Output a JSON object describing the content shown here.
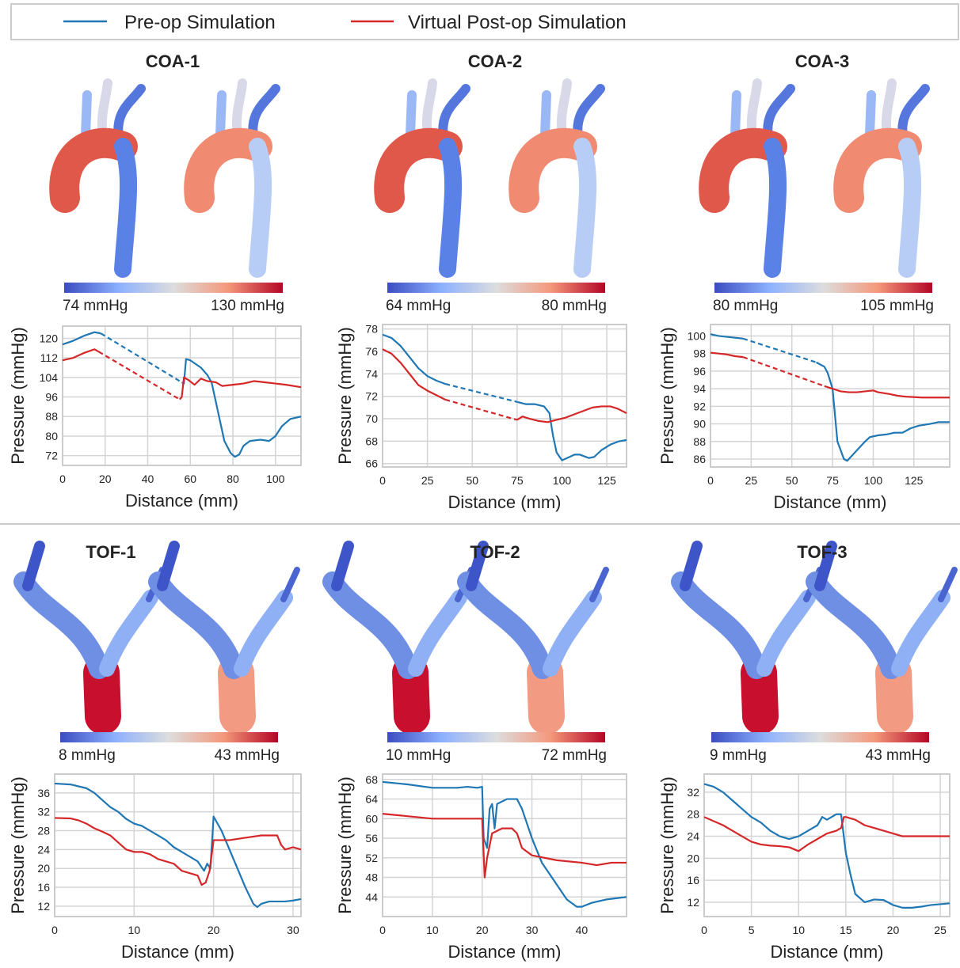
{
  "chart_data": [
    {
      "type": "line",
      "title": "COA-1",
      "colorbar_labels": [
        "74 mmHg",
        "130 mmHg"
      ],
      "xlabel": "Distance (mm)",
      "ylabel": "Pressure (mmHg)",
      "xlim": [
        0,
        112
      ],
      "ylim": [
        68,
        125
      ],
      "xticks": [
        0,
        20,
        40,
        60,
        80,
        100
      ],
      "yticks": [
        72,
        80,
        88,
        96,
        104,
        112,
        120
      ],
      "grid": true,
      "series": [
        {
          "name": "Pre-op Simulation",
          "color": "#1f77b4",
          "x": [
            0,
            5,
            10,
            15,
            18,
            null,
            56,
            57,
            58,
            60,
            65,
            68,
            70,
            73,
            76,
            79,
            81,
            83,
            85,
            88,
            93,
            97,
            100,
            103,
            107,
            112
          ],
          "values": [
            117.5,
            119,
            121,
            122.5,
            122,
            null,
            102,
            101.5,
            111.5,
            111,
            108,
            105,
            102,
            90,
            78,
            73,
            71.5,
            72.5,
            76,
            78,
            78.5,
            78,
            80,
            84,
            87,
            88
          ]
        },
        {
          "name": "Virtual Post-op Simulation",
          "color": "#d62728",
          "x": [
            0,
            5,
            10,
            15,
            17,
            null,
            55,
            56,
            57,
            59,
            62,
            65,
            68,
            72,
            75,
            80,
            85,
            90,
            95,
            100,
            105,
            112
          ],
          "values": [
            111,
            112,
            114,
            115.5,
            114.5,
            null,
            95,
            96,
            104,
            103,
            101,
            103.5,
            102.5,
            102,
            100.5,
            101,
            101.5,
            102.5,
            102,
            101.5,
            101,
            100
          ]
        }
      ]
    },
    {
      "type": "line",
      "title": "COA-2",
      "colorbar_labels": [
        "64 mmHg",
        "80 mmHg"
      ],
      "xlabel": "Distance (mm)",
      "ylabel": "Pressure (mmHg)",
      "xlim": [
        0,
        136
      ],
      "ylim": [
        65.7,
        78.4
      ],
      "xticks": [
        0,
        25,
        50,
        75,
        100,
        125
      ],
      "yticks": [
        66,
        68,
        70,
        72,
        74,
        76,
        78
      ],
      "grid": true,
      "series": [
        {
          "color": "#1f77b4",
          "x": [
            0,
            5,
            10,
            15,
            20,
            25,
            30,
            35,
            null,
            75,
            80,
            85,
            90,
            93,
            95,
            97,
            100,
            103,
            107,
            110,
            115,
            118,
            122,
            127,
            132,
            136
          ],
          "values": [
            77.5,
            77.2,
            76.5,
            75.5,
            74.5,
            73.8,
            73.4,
            73.1,
            null,
            71.5,
            71.3,
            71.3,
            71.1,
            70.5,
            68.5,
            67,
            66.3,
            66.5,
            66.8,
            66.8,
            66.5,
            66.6,
            67.2,
            67.7,
            68,
            68.1
          ]
        },
        {
          "color": "#d62728",
          "x": [
            0,
            5,
            10,
            15,
            20,
            25,
            30,
            35,
            null,
            75,
            78,
            82,
            87,
            92,
            97,
            102,
            107,
            112,
            117,
            122,
            127,
            131,
            136
          ],
          "values": [
            76.2,
            75.8,
            75,
            74,
            73,
            72.5,
            72.1,
            71.7,
            null,
            69.9,
            70.2,
            70,
            69.8,
            69.7,
            69.9,
            70.1,
            70.4,
            70.7,
            71,
            71.1,
            71.1,
            70.9,
            70.5
          ]
        }
      ]
    },
    {
      "type": "line",
      "title": "COA-3",
      "colorbar_labels": [
        "80 mmHg",
        "105 mmHg"
      ],
      "xlabel": "Distance (mm)",
      "ylabel": "Pressure (mmHg)",
      "xlim": [
        0,
        147
      ],
      "ylim": [
        85.1,
        101.3
      ],
      "xticks": [
        0,
        25,
        50,
        75,
        100,
        125
      ],
      "yticks": [
        86,
        88,
        90,
        92,
        94,
        96,
        98,
        100
      ],
      "grid": true,
      "series": [
        {
          "color": "#1f77b4",
          "x": [
            0,
            5,
            10,
            15,
            20,
            null,
            65,
            70,
            72,
            75,
            77,
            78,
            80,
            82,
            84,
            86,
            90,
            95,
            98,
            103,
            108,
            113,
            118,
            123,
            128,
            135,
            140,
            147
          ],
          "values": [
            100.2,
            100,
            99.9,
            99.8,
            99.7,
            null,
            97,
            96.5,
            95.8,
            94,
            90,
            88,
            87,
            86,
            85.8,
            86.2,
            87,
            88,
            88.5,
            88.7,
            88.8,
            89,
            89,
            89.5,
            89.8,
            90,
            90.2,
            90.2
          ]
        },
        {
          "color": "#d62728",
          "x": [
            0,
            5,
            10,
            15,
            20,
            null,
            70,
            75,
            80,
            85,
            90,
            95,
            100,
            103,
            110,
            115,
            120,
            130,
            140,
            147
          ],
          "values": [
            98.1,
            98,
            97.9,
            97.7,
            97.6,
            null,
            94.3,
            94,
            93.7,
            93.6,
            93.6,
            93.7,
            93.8,
            93.6,
            93.4,
            93.2,
            93.1,
            93,
            93,
            93
          ]
        }
      ]
    },
    {
      "type": "line",
      "title": "TOF-1",
      "colorbar_labels": [
        "8 mmHg",
        "43 mmHg"
      ],
      "xlabel": "Distance (mm)",
      "ylabel": "Pressure (mmHg)",
      "xlim": [
        0,
        31
      ],
      "ylim": [
        9.8,
        40
      ],
      "xticks": [
        0,
        10,
        20,
        30
      ],
      "yticks": [
        12,
        16,
        20,
        24,
        28,
        32,
        36
      ],
      "grid": true,
      "series": [
        {
          "color": "#1f77b4",
          "x": [
            0,
            2,
            4,
            5,
            6,
            7,
            8,
            9,
            10,
            11,
            12,
            13,
            14,
            15,
            16,
            17,
            18,
            18.8,
            19.2,
            19.6,
            20,
            21,
            22,
            23,
            24,
            25,
            25.5,
            26,
            27,
            28,
            29,
            30,
            31
          ],
          "values": [
            38,
            37.8,
            37,
            36,
            34.5,
            33,
            32,
            30.5,
            29.5,
            29,
            28,
            27,
            26,
            24.5,
            23.5,
            22.5,
            21.5,
            19.5,
            21,
            20,
            31,
            28,
            24,
            20,
            16,
            12.5,
            11.8,
            12.5,
            13,
            13,
            13,
            13.2,
            13.5
          ]
        },
        {
          "color": "#d62728",
          "x": [
            0,
            2,
            3,
            4,
            5,
            6,
            7,
            8,
            9,
            10,
            11,
            12,
            13,
            14,
            15,
            16,
            17,
            18,
            18.5,
            19,
            19.5,
            20,
            21,
            22,
            24,
            26,
            27,
            28,
            28.5,
            29,
            30,
            31
          ],
          "values": [
            30.7,
            30.6,
            30.2,
            29.5,
            28.5,
            27.8,
            27,
            25.5,
            24,
            23.5,
            23.5,
            23,
            22,
            21.5,
            21,
            19.5,
            19,
            18.5,
            16.5,
            17,
            19.5,
            26,
            26,
            26,
            26.5,
            27,
            27,
            27,
            25,
            24,
            24.5,
            24
          ]
        }
      ]
    },
    {
      "type": "line",
      "title": "TOF-2",
      "colorbar_labels": [
        "10 mmHg",
        "72 mmHg"
      ],
      "xlabel": "Distance (mm)",
      "ylabel": "Pressure (mmHg)",
      "xlim": [
        0,
        49
      ],
      "ylim": [
        40,
        69.1
      ],
      "xticks": [
        0,
        10,
        20,
        30,
        40
      ],
      "yticks": [
        44,
        48,
        52,
        56,
        60,
        64,
        68
      ],
      "grid": true,
      "series": [
        {
          "color": "#1f77b4",
          "x": [
            0,
            5,
            10,
            15,
            17,
            19,
            20,
            20.3,
            21,
            21.5,
            22,
            22.5,
            23,
            25,
            27,
            28,
            30,
            32,
            35,
            37,
            39,
            40,
            42,
            45,
            49
          ],
          "values": [
            67.5,
            67,
            66.3,
            66.3,
            66.5,
            66.3,
            66.5,
            56,
            54,
            62,
            63,
            58,
            63,
            64,
            64,
            62,
            56,
            51,
            46.5,
            43.5,
            42,
            42,
            42.8,
            43.5,
            44
          ]
        },
        {
          "color": "#d62728",
          "x": [
            0,
            5,
            10,
            15,
            19,
            20,
            20.5,
            21,
            22,
            24,
            26,
            27,
            28,
            30,
            35,
            40,
            43,
            46,
            49
          ],
          "values": [
            61,
            60.5,
            60,
            60,
            60,
            60,
            48,
            52,
            57,
            58,
            58,
            57,
            54,
            52.5,
            51.5,
            51,
            50.5,
            51,
            51
          ]
        }
      ]
    },
    {
      "type": "line",
      "title": "TOF-3",
      "colorbar_labels": [
        "9 mmHg",
        "43 mmHg"
      ],
      "xlabel": "Distance (mm)",
      "ylabel": "Pressure (mmHg)",
      "xlim": [
        0,
        26
      ],
      "ylim": [
        9.4,
        35.3
      ],
      "xticks": [
        0,
        5,
        10,
        15,
        20,
        25
      ],
      "yticks": [
        12,
        16,
        20,
        24,
        28,
        32
      ],
      "grid": true,
      "series": [
        {
          "color": "#1f77b4",
          "x": [
            0,
            1,
            2,
            3,
            4,
            5,
            6,
            7,
            8,
            9,
            10,
            11,
            12,
            12.5,
            13,
            14,
            14.5,
            15,
            15.5,
            16,
            17,
            18,
            19,
            20,
            21,
            22,
            23,
            24,
            26
          ],
          "values": [
            33.5,
            33,
            32,
            30.5,
            29,
            27.5,
            26.5,
            25,
            24,
            23.5,
            24,
            25,
            26,
            27.5,
            27,
            28,
            28,
            21,
            17,
            13.5,
            12,
            12.5,
            12.4,
            11.5,
            11,
            11,
            11.2,
            11.5,
            11.8
          ]
        },
        {
          "color": "#d62728",
          "x": [
            0,
            2,
            3,
            4,
            5,
            6,
            7,
            8,
            9,
            10,
            11,
            12,
            13,
            14,
            14.5,
            14.8,
            15,
            16,
            17,
            18,
            19,
            20,
            21,
            22,
            24,
            26
          ],
          "values": [
            27.5,
            26,
            25,
            24,
            23,
            22.5,
            22.3,
            22.2,
            22,
            21.3,
            22.5,
            23.5,
            24.5,
            25,
            25.5,
            27.5,
            27.5,
            27,
            26,
            25.5,
            25,
            24.5,
            24,
            24,
            24,
            24
          ]
        }
      ]
    }
  ]
}
